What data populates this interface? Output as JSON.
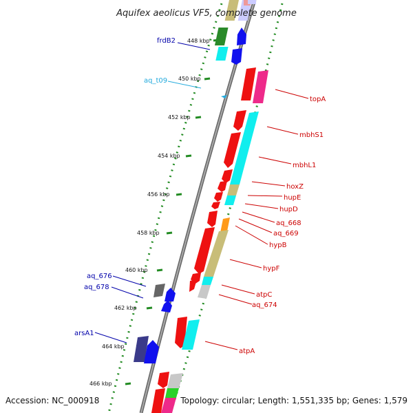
{
  "title": "Aquifex aeolicus VF5, complete genome",
  "footer": {
    "accession": "Accession: NC_000918",
    "topology": "Topology: circular; Length: 1,551,335 bp; Genes: 1,579"
  },
  "ticks": [
    "448 kbp",
    "450 kbp",
    "452 kbp",
    "454 kbp",
    "456 kbp",
    "458 kbp",
    "460 kbp",
    "462 kbp",
    "464 kbp",
    "466 kbp"
  ],
  "labels": {
    "frdB2": "frdB2",
    "aq_t09": "aq_t09",
    "topA": "topA",
    "mbhS1": "mbhS1",
    "mbhL1": "mbhL1",
    "hoxZ": "hoxZ",
    "hupE": "hupE",
    "hupD": "hupD",
    "aq_668": "aq_668",
    "aq_669": "aq_669",
    "hypB": "hypB",
    "hypF": "hypF",
    "atpC": "atpC",
    "aq_674": "aq_674",
    "aq_676": "aq_676",
    "aq_678": "aq_678",
    "arsA1": "arsA1",
    "atpA": "atpA"
  },
  "colors": {
    "backbone": "#888888",
    "dots": "#228b22",
    "red": "#ee1111",
    "blue": "#1111ee",
    "cyan": "#11eeee",
    "olive": "#c8bd78",
    "green": "#2a8a2a",
    "magenta": "#ee2a8a",
    "orange": "#ff9a1a",
    "gray": "#c8c8c8",
    "darkgray": "#666666",
    "navy": "#3a3a8a",
    "label_red": "#cc0000",
    "label_blue": "#0000aa",
    "label_cyan": "#22aadd"
  }
}
